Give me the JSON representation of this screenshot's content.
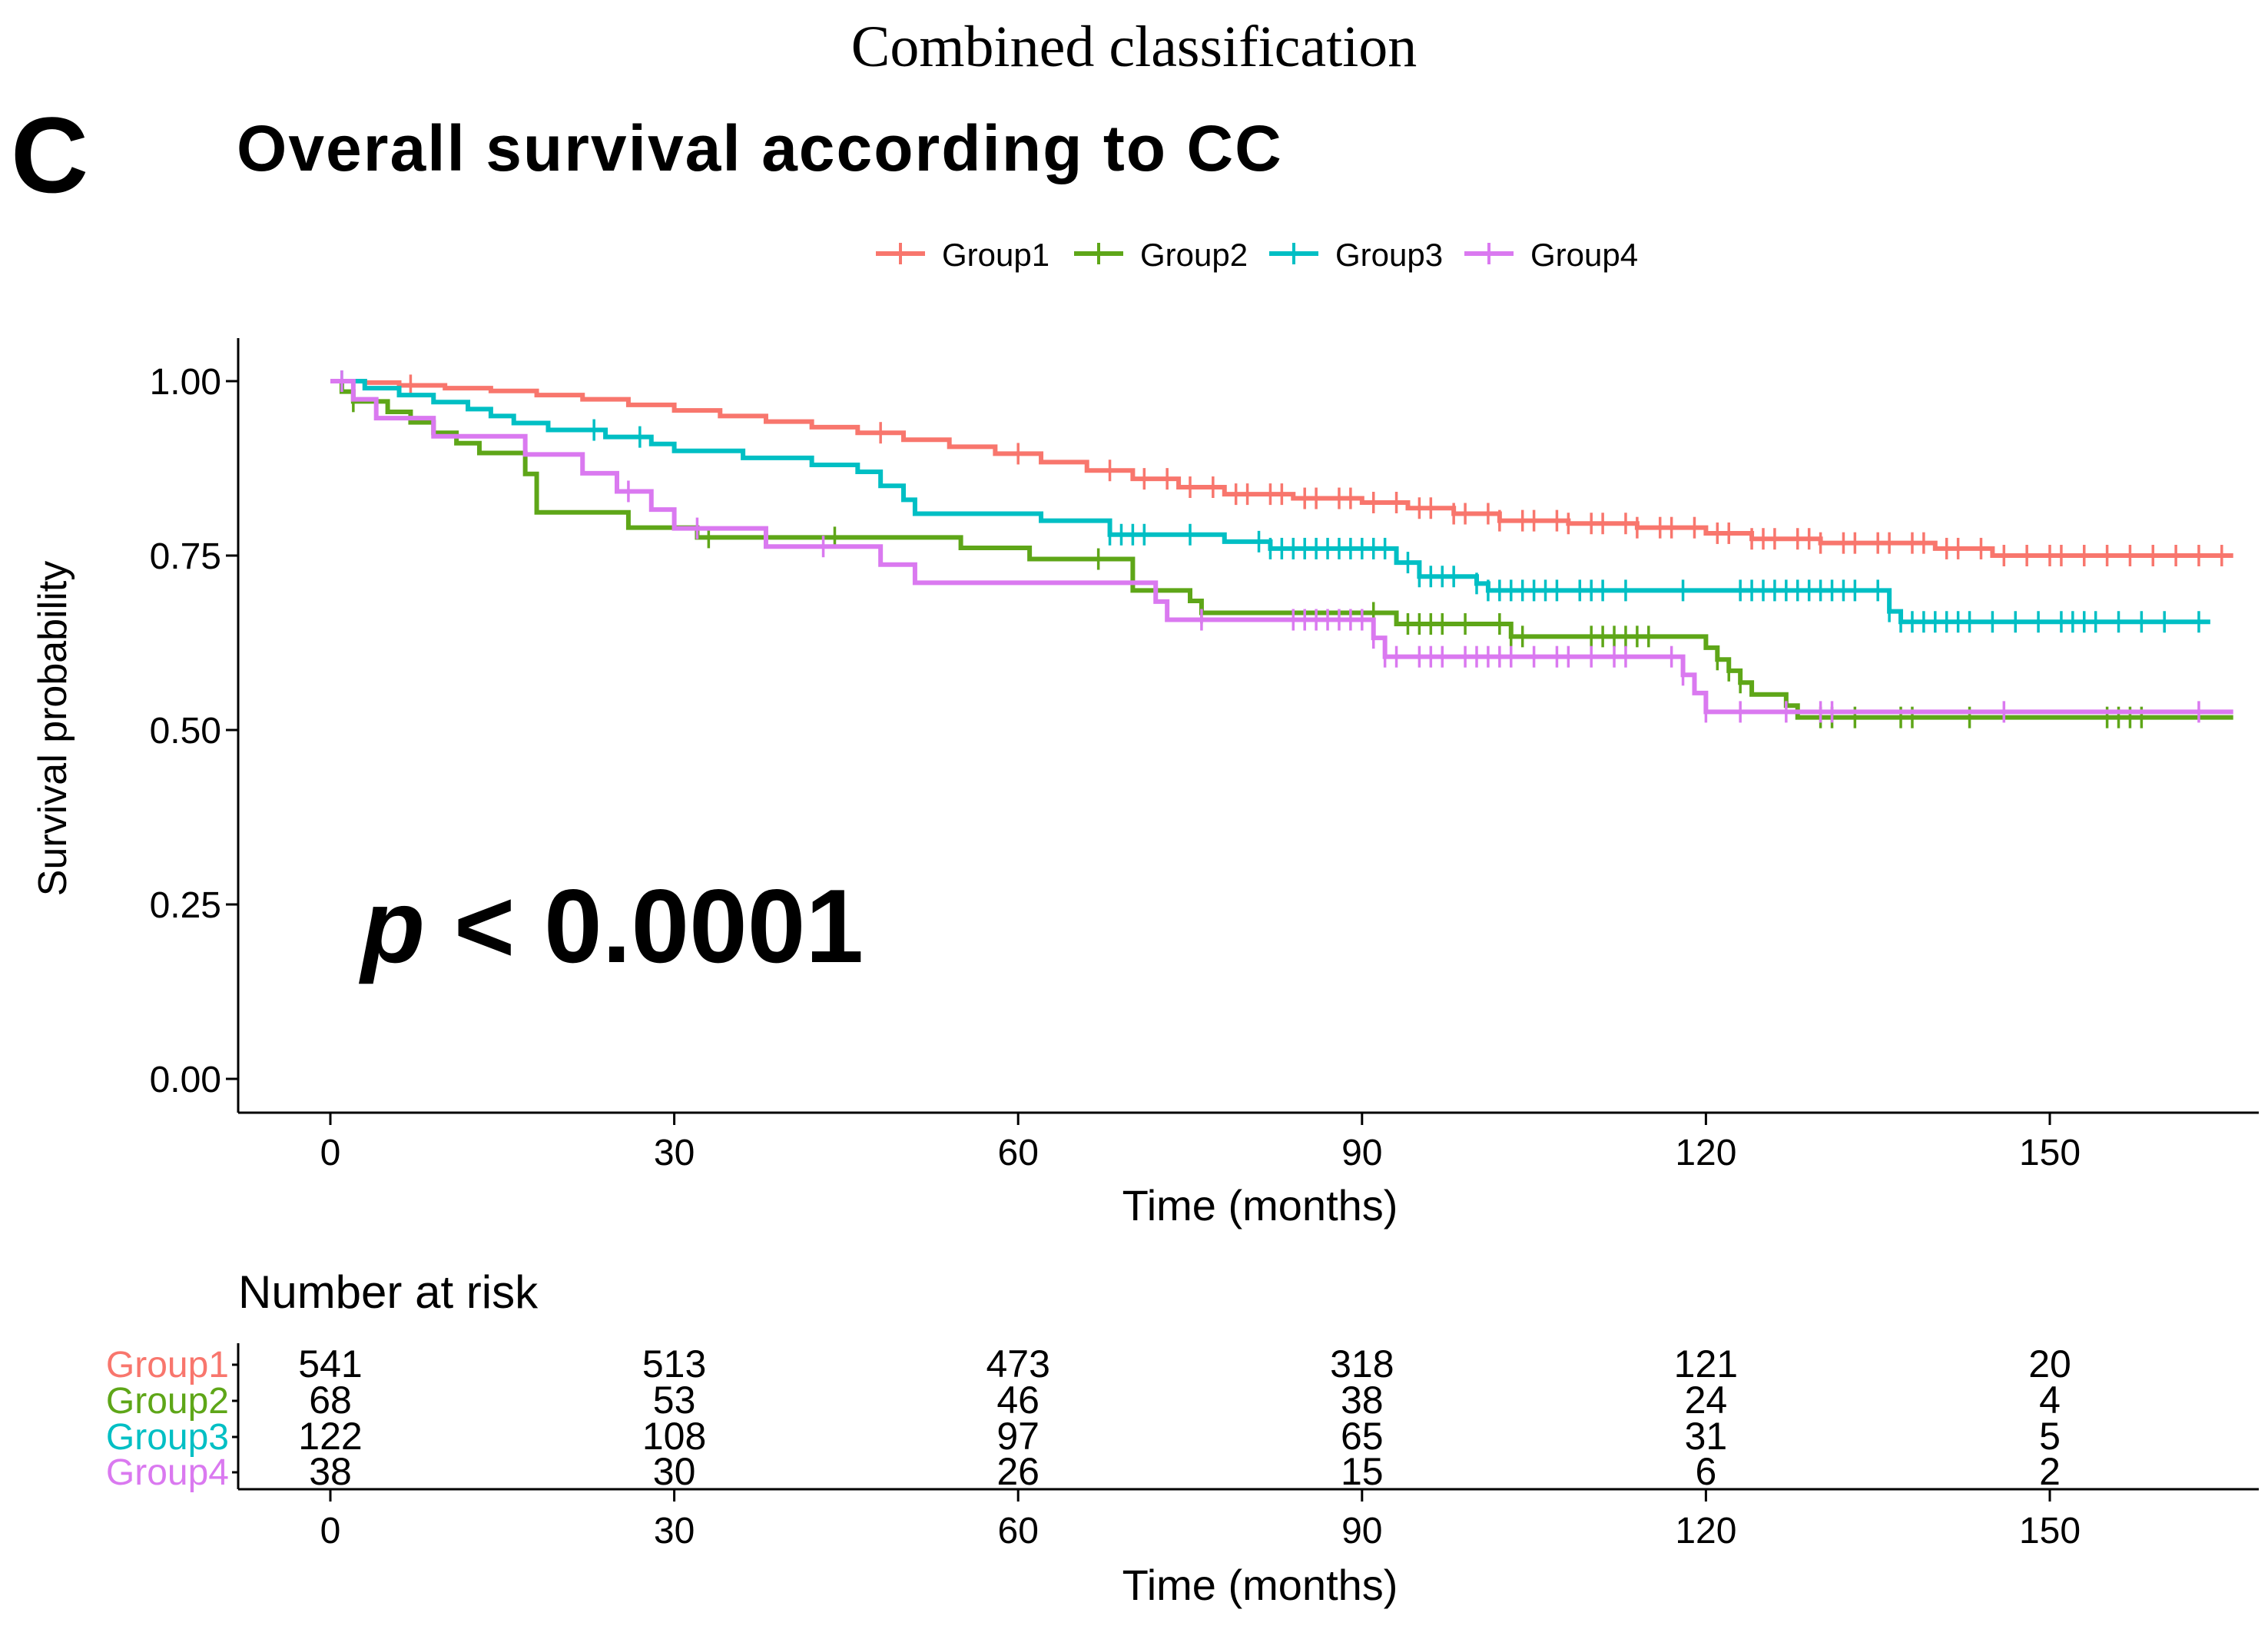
{
  "figure_title": "Combined classification",
  "panel_label": "C",
  "chart_data": {
    "type": "line",
    "subtype": "kaplan-meier",
    "title": "Overall survival according to CC",
    "xlabel": "Time (months)",
    "ylabel": "Survival probability",
    "xlim": [
      -8,
      167
    ],
    "ylim": [
      -0.05,
      1.05
    ],
    "x_ticks": [
      0,
      30,
      60,
      90,
      120,
      150
    ],
    "y_ticks": [
      0.0,
      0.25,
      0.5,
      0.75,
      1.0
    ],
    "x_tick_labels": [
      "0",
      "30",
      "60",
      "90",
      "120",
      "150"
    ],
    "y_tick_labels": [
      "0.00",
      "0.25",
      "0.50",
      "0.75",
      "1.00"
    ],
    "annotation": {
      "italic": "p",
      "rest": " < 0.0001"
    },
    "legend_position": "top",
    "series": [
      {
        "name": "Group1",
        "color": "#F8766D",
        "steps": [
          [
            0,
            1.0
          ],
          [
            3,
            0.998
          ],
          [
            6,
            0.994
          ],
          [
            10,
            0.99
          ],
          [
            14,
            0.986
          ],
          [
            18,
            0.98
          ],
          [
            22,
            0.974
          ],
          [
            26,
            0.966
          ],
          [
            30,
            0.958
          ],
          [
            34,
            0.95
          ],
          [
            38,
            0.942
          ],
          [
            42,
            0.934
          ],
          [
            46,
            0.926
          ],
          [
            50,
            0.916
          ],
          [
            54,
            0.906
          ],
          [
            58,
            0.896
          ],
          [
            62,
            0.884
          ],
          [
            66,
            0.872
          ],
          [
            70,
            0.86
          ],
          [
            74,
            0.848
          ],
          [
            78,
            0.838
          ],
          [
            84,
            0.832
          ],
          [
            90,
            0.826
          ],
          [
            94,
            0.818
          ],
          [
            98,
            0.81
          ],
          [
            102,
            0.8
          ],
          [
            108,
            0.796
          ],
          [
            114,
            0.79
          ],
          [
            120,
            0.782
          ],
          [
            124,
            0.774
          ],
          [
            130,
            0.768
          ],
          [
            140,
            0.76
          ],
          [
            145,
            0.75
          ],
          [
            166,
            0.75
          ]
        ],
        "censor_times": [
          7,
          48,
          60,
          68,
          71,
          73,
          75,
          77,
          79,
          80,
          82,
          83,
          85,
          86,
          88,
          89,
          91,
          93,
          95,
          96,
          98,
          99,
          101,
          102,
          104,
          105,
          107,
          108,
          110,
          111,
          113,
          114,
          116,
          117,
          119,
          121,
          122,
          124,
          125,
          126,
          128,
          129,
          130,
          132,
          133,
          135,
          136,
          138,
          139,
          141,
          142,
          144,
          146,
          148,
          150,
          151,
          153,
          155,
          157,
          159,
          161,
          163,
          165
        ]
      },
      {
        "name": "Group2",
        "color": "#5EA618",
        "steps": [
          [
            0,
            1.0
          ],
          [
            1,
            0.985
          ],
          [
            2,
            0.971
          ],
          [
            5,
            0.956
          ],
          [
            7,
            0.941
          ],
          [
            9,
            0.926
          ],
          [
            11,
            0.911
          ],
          [
            13,
            0.897
          ],
          [
            17,
            0.867
          ],
          [
            18,
            0.812
          ],
          [
            26,
            0.79
          ],
          [
            32,
            0.776
          ],
          [
            55,
            0.761
          ],
          [
            61,
            0.745
          ],
          [
            70,
            0.7
          ],
          [
            75,
            0.685
          ],
          [
            76,
            0.668
          ],
          [
            93,
            0.652
          ],
          [
            103,
            0.634
          ],
          [
            120,
            0.618
          ],
          [
            121,
            0.601
          ],
          [
            122,
            0.585
          ],
          [
            123,
            0.568
          ],
          [
            124,
            0.551
          ],
          [
            127,
            0.535
          ],
          [
            128,
            0.518
          ],
          [
            166,
            0.518
          ]
        ],
        "censor_times": [
          2,
          33,
          44,
          67,
          76,
          91,
          94,
          95,
          96,
          97,
          99,
          102,
          103,
          104,
          110,
          111,
          112,
          113,
          114,
          115,
          121,
          122,
          123,
          130,
          131,
          133,
          137,
          138,
          143,
          155,
          156,
          157,
          158
        ]
      },
      {
        "name": "Group3",
        "color": "#00BFC4",
        "steps": [
          [
            0,
            1.0
          ],
          [
            3,
            0.99
          ],
          [
            6,
            0.98
          ],
          [
            9,
            0.97
          ],
          [
            12,
            0.96
          ],
          [
            14,
            0.95
          ],
          [
            16,
            0.94
          ],
          [
            19,
            0.93
          ],
          [
            24,
            0.92
          ],
          [
            28,
            0.91
          ],
          [
            30,
            0.9
          ],
          [
            36,
            0.89
          ],
          [
            42,
            0.88
          ],
          [
            46,
            0.87
          ],
          [
            48,
            0.85
          ],
          [
            50,
            0.83
          ],
          [
            51,
            0.81
          ],
          [
            62,
            0.8
          ],
          [
            68,
            0.78
          ],
          [
            78,
            0.77
          ],
          [
            82,
            0.76
          ],
          [
            93,
            0.74
          ],
          [
            95,
            0.72
          ],
          [
            100,
            0.71
          ],
          [
            101,
            0.7
          ],
          [
            136,
            0.67
          ],
          [
            137,
            0.655
          ],
          [
            164,
            0.655
          ]
        ],
        "censor_times": [
          1,
          23,
          27,
          68,
          69,
          70,
          71,
          75,
          81,
          82,
          83,
          84,
          85,
          86,
          87,
          88,
          89,
          90,
          91,
          92,
          94,
          95,
          96,
          97,
          98,
          100,
          101,
          102,
          103,
          104,
          105,
          106,
          107,
          109,
          110,
          111,
          113,
          118,
          123,
          124,
          125,
          126,
          127,
          128,
          129,
          130,
          131,
          132,
          133,
          135,
          136,
          137,
          138,
          139,
          140,
          141,
          142,
          143,
          145,
          147,
          149,
          151,
          152,
          153,
          154,
          156,
          158,
          160,
          163
        ]
      },
      {
        "name": "Group4",
        "color": "#DA79F0",
        "steps": [
          [
            0,
            1.0
          ],
          [
            2,
            0.974
          ],
          [
            4,
            0.947
          ],
          [
            9,
            0.921
          ],
          [
            17,
            0.895
          ],
          [
            22,
            0.868
          ],
          [
            25,
            0.842
          ],
          [
            28,
            0.816
          ],
          [
            30,
            0.789
          ],
          [
            38,
            0.763
          ],
          [
            48,
            0.737
          ],
          [
            51,
            0.711
          ],
          [
            72,
            0.684
          ],
          [
            73,
            0.658
          ],
          [
            91,
            0.632
          ],
          [
            92,
            0.605
          ],
          [
            118,
            0.579
          ],
          [
            119,
            0.553
          ],
          [
            120,
            0.526
          ],
          [
            166,
            0.526
          ]
        ],
        "censor_times": [
          1,
          26,
          32,
          43,
          76,
          84,
          85,
          86,
          87,
          88,
          89,
          90,
          91,
          92,
          93,
          95,
          96,
          97,
          99,
          100,
          101,
          102,
          103,
          105,
          107,
          108,
          110,
          112,
          113,
          117,
          118,
          120,
          123,
          127,
          130,
          131,
          146,
          163
        ]
      }
    ]
  },
  "risk_table": {
    "title": "Number at risk",
    "xlabel": "Time (months)",
    "times": [
      0,
      30,
      60,
      90,
      120,
      150
    ],
    "time_labels": [
      "0",
      "30",
      "60",
      "90",
      "120",
      "150"
    ],
    "rows": [
      {
        "name": "Group1",
        "color": "#F8766D",
        "counts": [
          "541",
          "513",
          "473",
          "318",
          "121",
          "20"
        ]
      },
      {
        "name": "Group2",
        "color": "#5EA618",
        "counts": [
          "68",
          "53",
          "46",
          "38",
          "24",
          "4"
        ]
      },
      {
        "name": "Group3",
        "color": "#00BFC4",
        "counts": [
          "122",
          "108",
          "97",
          "65",
          "31",
          "5"
        ]
      },
      {
        "name": "Group4",
        "color": "#DA79F0",
        "counts": [
          "38",
          "30",
          "26",
          "15",
          "6",
          "2"
        ]
      }
    ]
  }
}
